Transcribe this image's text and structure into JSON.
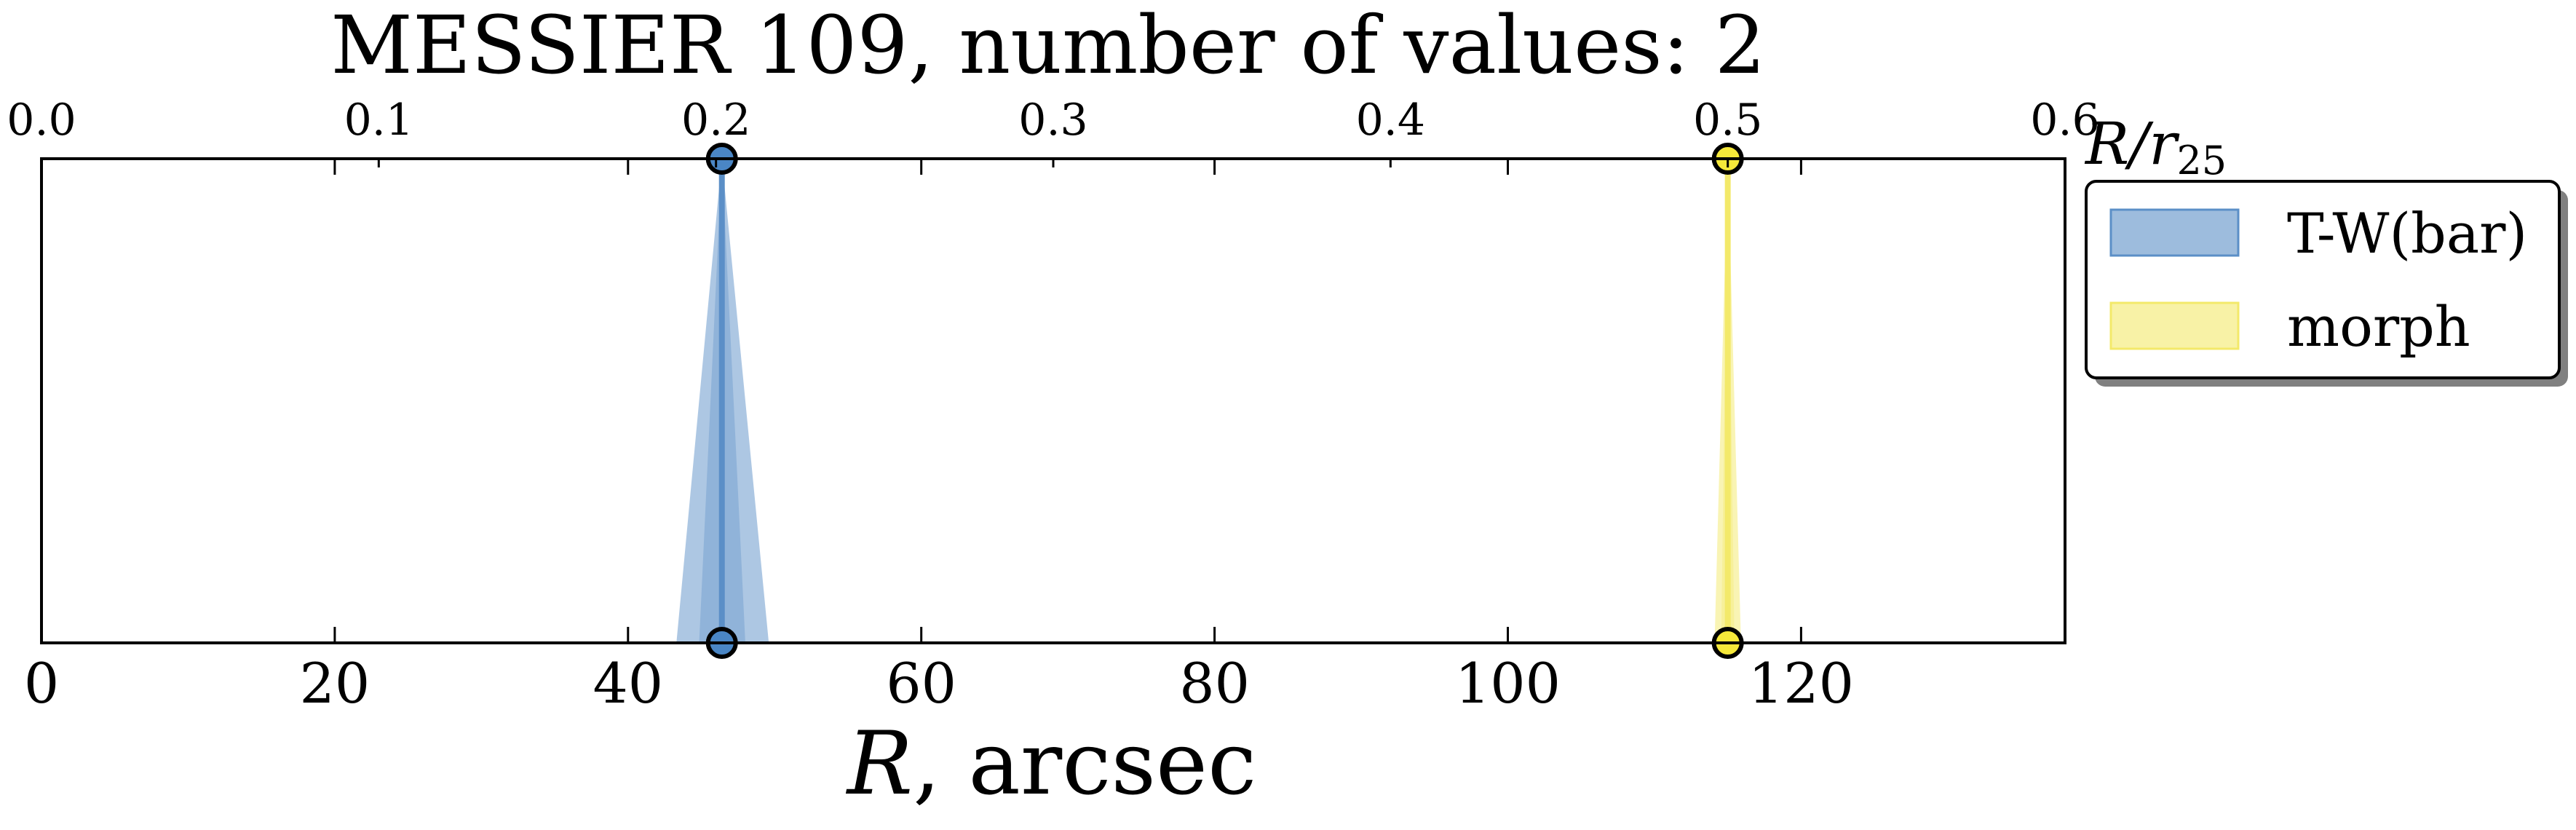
{
  "chart_data": {
    "type": "line",
    "title": "MESSIER 109, number of values: 2",
    "xlabel": "R, arcsec",
    "xlabel_var": "R",
    "xlabel_unit": ", arcsec",
    "x_top_label": "R/r25",
    "x_top_label_var": "R/r",
    "x_top_label_sub": "25",
    "xlim": [
      0,
      138
    ],
    "x_top_lim": [
      0,
      0.6
    ],
    "x_ticks": [
      0,
      20,
      40,
      60,
      80,
      100,
      120
    ],
    "x_top_ticks": [
      "0.0",
      "0.1",
      "0.2",
      "0.3",
      "0.4",
      "0.5",
      "0.6"
    ],
    "legend_position": "outside-right-top",
    "series": [
      {
        "name": "T-W(bar)",
        "x": 46.4,
        "x_low": 43.3,
        "x_high": 49.6,
        "color": "#5b8fc7",
        "marker_color": "#4a86c5"
      },
      {
        "name": "morph",
        "x": 115.0,
        "x_low": 114.1,
        "x_high": 115.9,
        "color": "#f3e96a",
        "marker_color": "#f5e83a"
      }
    ]
  }
}
